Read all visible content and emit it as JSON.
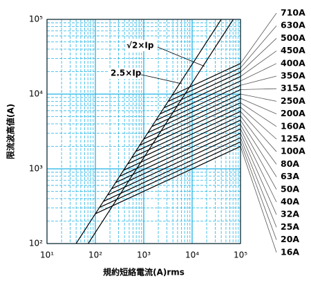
{
  "chart_data": {
    "type": "line",
    "xlabel": "規約短絡電流(A)rms",
    "ylabel": "限流波高値(A)",
    "xscale": "log",
    "yscale": "log",
    "grid": true,
    "minor_grid": true,
    "grid_color": "#1fb4e6",
    "xlim": [
      10,
      100000
    ],
    "ylim": [
      100,
      100000
    ],
    "xticks": [
      {
        "value": 10,
        "label": "10¹"
      },
      {
        "value": 100,
        "label": "10²"
      },
      {
        "value": 1000,
        "label": "10³"
      },
      {
        "value": 10000,
        "label": "10⁴"
      },
      {
        "value": 100000,
        "label": "10⁵"
      }
    ],
    "yticks": [
      {
        "value": 100,
        "label": "10²"
      },
      {
        "value": 1000,
        "label": "10³"
      },
      {
        "value": 10000,
        "label": "10⁴"
      },
      {
        "value": 100000,
        "label": "10⁵"
      }
    ],
    "series": [
      {
        "name": "√2×Ip",
        "role": "reference",
        "color": "#000000",
        "x": [
          71,
          70700
        ],
        "values": [
          100,
          100000
        ]
      },
      {
        "name": "2.5×Ip",
        "role": "reference",
        "color": "#000000",
        "x": [
          40,
          40000
        ],
        "values": [
          100,
          100000
        ]
      },
      {
        "name": "710A",
        "color": "#000000",
        "x": [
          3880,
          100000
        ],
        "values": [
          9660,
          25700
        ]
      },
      {
        "name": "630A",
        "color": "#000000",
        "x": [
          3206,
          100000
        ],
        "values": [
          7980,
          22490
        ]
      },
      {
        "name": "500A",
        "color": "#000000",
        "x": [
          2640,
          100000
        ],
        "values": [
          6570,
          19640
        ]
      },
      {
        "name": "450A",
        "color": "#000000",
        "x": [
          2183,
          100000
        ],
        "values": [
          5430,
          17180
        ]
      },
      {
        "name": "400A",
        "color": "#000000",
        "x": [
          1795,
          100000
        ],
        "values": [
          4470,
          15000
        ]
      },
      {
        "name": "350A",
        "color": "#000000",
        "x": [
          1483,
          100000
        ],
        "values": [
          3690,
          13120
        ]
      },
      {
        "name": "315A",
        "color": "#000000",
        "x": [
          1227,
          100000
        ],
        "values": [
          3050,
          11480
        ]
      },
      {
        "name": "250A",
        "color": "#000000",
        "x": [
          1009,
          100000
        ],
        "values": [
          2510,
          10020
        ]
      },
      {
        "name": "200A",
        "color": "#000000",
        "x": [
          834,
          100000
        ],
        "values": [
          2075,
          8770
        ]
      },
      {
        "name": "160A",
        "color": "#000000",
        "x": [
          687,
          100000
        ],
        "values": [
          1710,
          7660
        ]
      },
      {
        "name": "125A",
        "color": "#000000",
        "x": [
          568,
          100000
        ],
        "values": [
          1413,
          6700
        ]
      },
      {
        "name": "100A",
        "color": "#000000",
        "x": [
          469,
          100000
        ],
        "values": [
          1167,
          5860
        ]
      },
      {
        "name": "80A",
        "color": "#000000",
        "x": [
          386,
          100000
        ],
        "values": [
          961,
          5120
        ]
      },
      {
        "name": "63A",
        "color": "#000000",
        "x": [
          319,
          100000
        ],
        "values": [
          794,
          4480
        ]
      },
      {
        "name": "50A",
        "color": "#000000",
        "x": [
          263,
          100000
        ],
        "values": [
          655,
          3910
        ]
      },
      {
        "name": "40A",
        "color": "#000000",
        "x": [
          217,
          100000
        ],
        "values": [
          541,
          3420
        ]
      },
      {
        "name": "32A",
        "color": "#000000",
        "x": [
          179,
          100000
        ],
        "values": [
          446,
          2990
        ]
      },
      {
        "name": "25A",
        "color": "#000000",
        "x": [
          148,
          100000
        ],
        "values": [
          368,
          2610
        ]
      },
      {
        "name": "20A",
        "color": "#000000",
        "x": [
          122,
          100000
        ],
        "values": [
          304,
          2290
        ]
      },
      {
        "name": "16A",
        "color": "#000000",
        "x": [
          101,
          100000
        ],
        "values": [
          251,
          1995
        ]
      }
    ]
  }
}
